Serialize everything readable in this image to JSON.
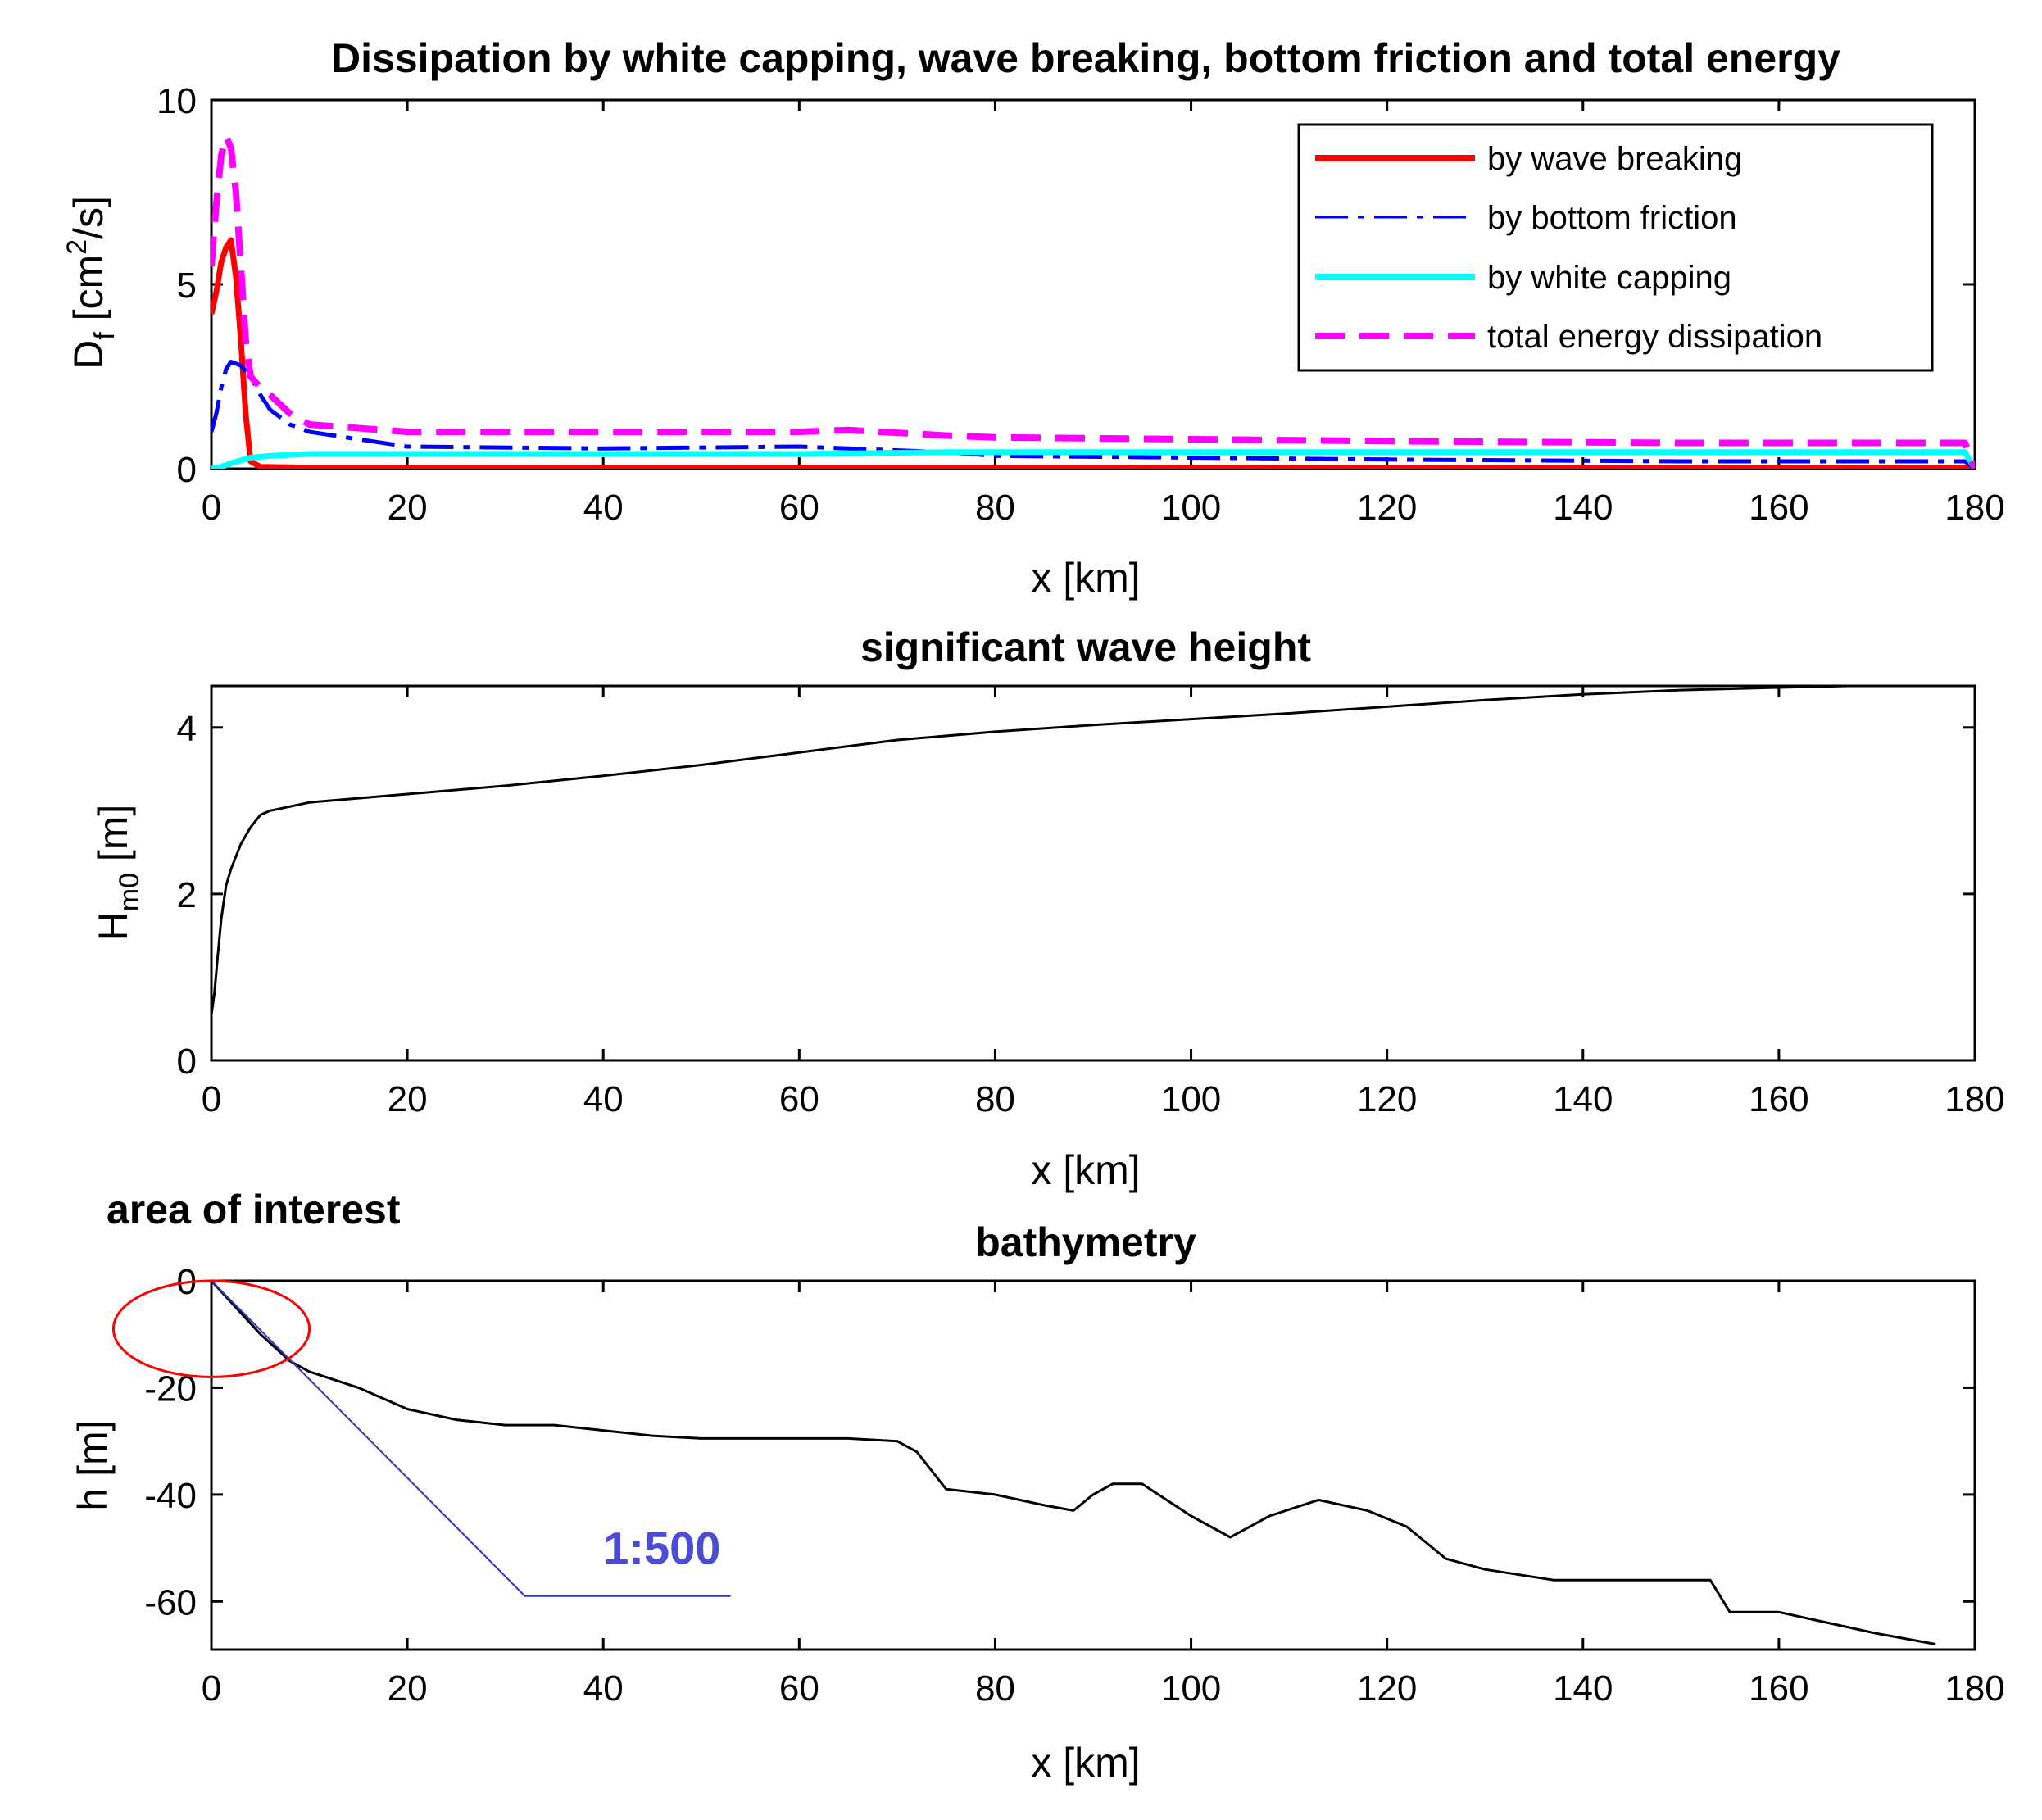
{
  "chart_data": [
    {
      "type": "line",
      "title": "Dissipation by white capping, wave breaking, bottom friction and total energy",
      "xlabel": "x [km]",
      "ylabel": "D_f [cm^2/s]",
      "ylabel_parts": {
        "main": "D",
        "sub": "f",
        "unit_pre": " [cm",
        "sup": "2",
        "unit_post": "/s]"
      },
      "xlim": [
        0,
        180
      ],
      "ylim": [
        0,
        10
      ],
      "xticks": [
        "0",
        "20",
        "40",
        "60",
        "80",
        "100",
        "120",
        "140",
        "160",
        "180"
      ],
      "yticks": [
        "0",
        "5",
        "10"
      ],
      "legend_position": "top-right",
      "series": [
        {
          "name": "by wave breaking",
          "color": "#ff0000",
          "style": "solid",
          "x": [
            0,
            0.5,
            1,
            1.5,
            2,
            2.5,
            3,
            3.5,
            4,
            5,
            10,
            60,
            100,
            140,
            180
          ],
          "y": [
            4.2,
            4.8,
            5.6,
            6.0,
            6.2,
            5.2,
            3.5,
            1.5,
            0.2,
            0.05,
            0.03,
            0.03,
            0.03,
            0.03,
            0.03
          ]
        },
        {
          "name": "by bottom friction",
          "color": "#0000ff",
          "style": "dashdot",
          "x": [
            0,
            0.5,
            1,
            1.5,
            2,
            3,
            4,
            5,
            6,
            8,
            10,
            15,
            20,
            40,
            60,
            65,
            75,
            80,
            100,
            120,
            150,
            170,
            179,
            180
          ],
          "y": [
            1.0,
            1.5,
            2.2,
            2.7,
            2.9,
            2.8,
            2.5,
            2.0,
            1.6,
            1.2,
            1.0,
            0.8,
            0.6,
            0.55,
            0.6,
            0.55,
            0.45,
            0.35,
            0.3,
            0.25,
            0.2,
            0.2,
            0.2,
            0.0
          ]
        },
        {
          "name": "by white capping",
          "color": "#00ffff",
          "style": "solid",
          "x": [
            0,
            1,
            2,
            4,
            6,
            10,
            30,
            60,
            75,
            100,
            140,
            179,
            180
          ],
          "y": [
            0.0,
            0.05,
            0.15,
            0.3,
            0.35,
            0.4,
            0.4,
            0.4,
            0.45,
            0.45,
            0.45,
            0.45,
            0.0
          ]
        },
        {
          "name": "total energy dissipation",
          "color": "#ff00ff",
          "style": "dashed",
          "x": [
            0,
            0.5,
            1,
            1.5,
            2,
            2.5,
            3,
            3.5,
            4,
            5,
            6,
            8,
            10,
            15,
            20,
            40,
            60,
            65,
            75,
            80,
            100,
            120,
            150,
            179,
            180
          ],
          "y": [
            5.5,
            7.2,
            8.5,
            9.0,
            8.7,
            7.5,
            5.5,
            3.5,
            2.5,
            2.2,
            2.0,
            1.5,
            1.2,
            1.1,
            1.0,
            1.0,
            1.0,
            1.05,
            0.9,
            0.85,
            0.8,
            0.75,
            0.7,
            0.7,
            0.0
          ]
        }
      ]
    },
    {
      "type": "line",
      "title": "significant wave height",
      "xlabel": "x [km]",
      "ylabel": "H_m0 [m]",
      "ylabel_parts": {
        "main": "H",
        "sub": "m0",
        "unit": " [m]"
      },
      "xlim": [
        0,
        180
      ],
      "ylim": [
        0,
        4.5
      ],
      "xticks": [
        "0",
        "20",
        "40",
        "60",
        "80",
        "100",
        "120",
        "140",
        "160",
        "180"
      ],
      "yticks": [
        "0",
        "2",
        "4"
      ],
      "series": [
        {
          "name": "Hm0",
          "color": "#000000",
          "style": "solid",
          "x": [
            0,
            0.3,
            0.6,
            1,
            1.5,
            2,
            3,
            4,
            5,
            6,
            8,
            10,
            15,
            20,
            30,
            40,
            50,
            60,
            70,
            80,
            90,
            100,
            110,
            120,
            130,
            140,
            150,
            160,
            167
          ],
          "y": [
            0.55,
            0.8,
            1.2,
            1.7,
            2.1,
            2.3,
            2.6,
            2.8,
            2.95,
            3.0,
            3.05,
            3.1,
            3.15,
            3.2,
            3.3,
            3.42,
            3.55,
            3.7,
            3.85,
            3.95,
            4.03,
            4.1,
            4.17,
            4.25,
            4.33,
            4.4,
            4.45,
            4.48,
            4.5
          ]
        }
      ]
    },
    {
      "type": "line",
      "title": "bathymetry",
      "xlabel": "x [km]",
      "ylabel": "h [m]",
      "xlim": [
        0,
        180
      ],
      "ylim": [
        -69,
        0
      ],
      "xticks": [
        "0",
        "20",
        "40",
        "60",
        "80",
        "100",
        "120",
        "140",
        "160",
        "180"
      ],
      "yticks": [
        "0",
        "-20",
        "-40",
        "-60"
      ],
      "series": [
        {
          "name": "bathymetry",
          "color": "#000000",
          "style": "solid",
          "x": [
            0,
            2,
            5,
            8,
            10,
            15,
            20,
            25,
            30,
            35,
            40,
            45,
            50,
            55,
            60,
            65,
            70,
            72,
            75,
            80,
            85,
            88,
            90,
            92,
            95,
            100,
            104,
            108,
            113,
            118,
            122,
            126,
            130,
            137,
            145,
            150,
            153,
            155,
            160,
            165,
            170,
            176
          ],
          "y": [
            0,
            -4,
            -10,
            -15,
            -17,
            -20,
            -24,
            -26,
            -27,
            -27,
            -28,
            -29,
            -29.5,
            -29.5,
            -29.5,
            -29.5,
            -30,
            -32,
            -39,
            -40,
            -42,
            -43,
            -40,
            -38,
            -38,
            -44,
            -48,
            -44,
            -41,
            -43,
            -46,
            -52,
            -54,
            -56,
            -56,
            -56,
            -56,
            -62,
            -62,
            -64,
            -66,
            -68
          ]
        },
        {
          "name": "1:500 slope",
          "color": "#3333cc",
          "style": "solid",
          "x": [
            0,
            32,
            53
          ],
          "y": [
            0,
            -59,
            -59
          ]
        }
      ],
      "annotations": [
        {
          "text": "area of interest",
          "type": "ellipse",
          "color": "#ff0000",
          "center": [
            0,
            -9
          ],
          "x_radius": 10,
          "y_radius": 9
        },
        {
          "text": "1:500",
          "x": 40,
          "y": -53,
          "color": "#4b4bd6"
        }
      ]
    }
  ]
}
